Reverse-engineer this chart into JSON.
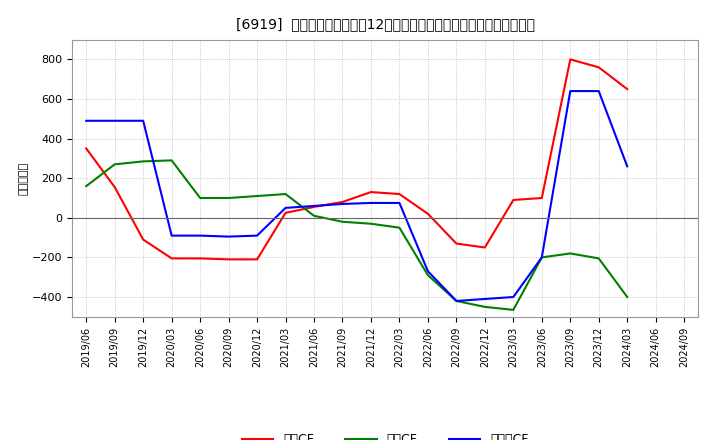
{
  "title": "[6919]  キャッシュフローの12か月移動合計の対前年同期増減額の推移",
  "ylabel": "（百万円）",
  "background_color": "#ffffff",
  "plot_background_color": "#ffffff",
  "grid_color": "#aaaaaa",
  "x_labels": [
    "2019/06",
    "2019/09",
    "2019/12",
    "2020/03",
    "2020/06",
    "2020/09",
    "2020/12",
    "2021/03",
    "2021/06",
    "2021/09",
    "2021/12",
    "2022/03",
    "2022/06",
    "2022/09",
    "2022/12",
    "2023/03",
    "2023/06",
    "2023/09",
    "2023/12",
    "2024/03",
    "2024/06",
    "2024/09"
  ],
  "operating_cf": [
    350,
    155,
    -110,
    -205,
    -205,
    -210,
    -210,
    25,
    55,
    80,
    130,
    120,
    20,
    -130,
    -150,
    90,
    100,
    800,
    760,
    650,
    null,
    null
  ],
  "investing_cf": [
    160,
    270,
    285,
    290,
    100,
    100,
    110,
    120,
    10,
    -20,
    -30,
    -50,
    -290,
    -420,
    -450,
    -465,
    -200,
    -180,
    -205,
    -400,
    null,
    null
  ],
  "free_cf": [
    490,
    490,
    490,
    -90,
    -90,
    -95,
    -90,
    50,
    60,
    70,
    75,
    75,
    -270,
    -420,
    -410,
    -400,
    -200,
    640,
    640,
    260,
    null,
    null
  ],
  "ylim": [
    -500,
    900
  ],
  "yticks": [
    -400,
    -200,
    0,
    200,
    400,
    600,
    800
  ],
  "operating_color": "#ff0000",
  "investing_color": "#008000",
  "free_color": "#0000ff",
  "legend_labels": [
    "営業CF",
    "投資CF",
    "フリーCF"
  ]
}
